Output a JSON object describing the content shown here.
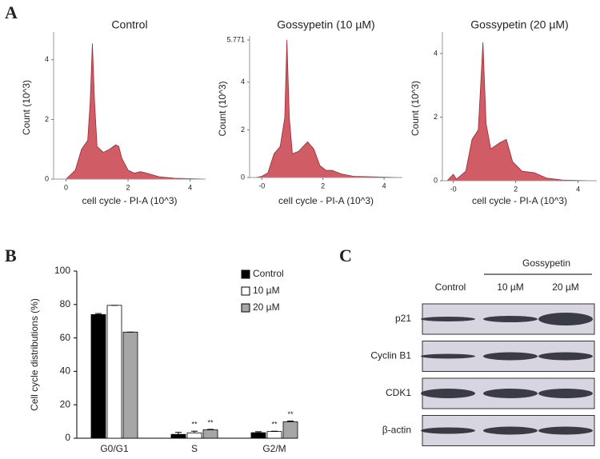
{
  "panel_labels": [
    "A",
    "B",
    "C"
  ],
  "chart_data": [
    {
      "type": "area",
      "title": "Control",
      "x_label": "cell cycle - PI-A (10^3)",
      "y_label": "Count (10^3)",
      "color": "#c8404a",
      "x": [
        0,
        0.3,
        0.5,
        0.7,
        0.78,
        0.85,
        0.92,
        1.0,
        1.2,
        1.4,
        1.6,
        1.7,
        1.8,
        2.0,
        2.2,
        2.4,
        2.6,
        3.0,
        3.5,
        4.5
      ],
      "values": [
        0,
        0.3,
        1.0,
        1.3,
        2.6,
        4.55,
        2.6,
        1.1,
        0.9,
        1.0,
        1.15,
        1.1,
        0.7,
        0.3,
        0.2,
        0.25,
        0.2,
        0.08,
        0.03,
        0
      ],
      "xlim": [
        -0.4,
        4.5
      ],
      "ylim": [
        0,
        4.8
      ],
      "xticks": [
        0,
        2,
        4
      ],
      "yticks": [
        0,
        2,
        4
      ]
    },
    {
      "type": "area",
      "title": "Gossypetin (10 µM)",
      "x_label": "cell cycle - PI-A (10^3)",
      "y_label": "Count (10^3)",
      "color": "#c8404a",
      "x": [
        -0.2,
        0,
        0.2,
        0.4,
        0.6,
        0.75,
        0.82,
        0.9,
        1.0,
        1.2,
        1.5,
        1.7,
        1.9,
        2.1,
        2.3,
        2.6,
        3.0,
        4.6
      ],
      "values": [
        0,
        0.05,
        0.2,
        1.0,
        1.3,
        2.5,
        5.771,
        2.5,
        1.0,
        1.1,
        1.5,
        1.2,
        0.5,
        0.3,
        0.3,
        0.15,
        0.05,
        0
      ],
      "xlim": [
        -0.4,
        4.6
      ],
      "ylim": [
        0,
        5.771
      ],
      "xticks": [
        {
          "value": 0,
          "label": "-0"
        },
        2,
        4
      ],
      "yticks": [
        0,
        2,
        4,
        5.771
      ]
    },
    {
      "type": "area",
      "title": "Gossypetin (20 µM)",
      "x_label": "cell cycle - PI-A (10^3)",
      "y_label": "Count (10^3)",
      "color": "#c8404a",
      "x": [
        -0.2,
        0,
        0.1,
        0.4,
        0.6,
        0.8,
        0.95,
        1.05,
        1.2,
        1.5,
        1.7,
        1.9,
        2.2,
        2.6,
        3.0,
        3.5,
        4.5
      ],
      "values": [
        0,
        0.2,
        0.05,
        0.3,
        1.3,
        1.6,
        4.35,
        1.8,
        1.0,
        1.2,
        1.3,
        0.6,
        0.3,
        0.25,
        0.08,
        0.02,
        0
      ],
      "xlim": [
        -0.35,
        4.6
      ],
      "ylim": [
        0,
        4.55
      ],
      "xticks": [
        {
          "value": 0,
          "label": "-0"
        },
        2,
        4
      ],
      "yticks": [
        0,
        2,
        4
      ]
    },
    {
      "type": "bar",
      "y_label": "Cell cycle distributions (%)",
      "categories": [
        "G0/G1",
        "S",
        "G2/M"
      ],
      "series": [
        {
          "name": "Control",
          "color": "#000000",
          "values": [
            74,
            2.3,
            3.3
          ],
          "errors": [
            0.6,
            1.2,
            0.6
          ],
          "significance": [
            null,
            null,
            null
          ]
        },
        {
          "name": "10 µM",
          "color": "#ffffff",
          "values": [
            79.5,
            3.2,
            4
          ],
          "errors": [
            0,
            1,
            0.2
          ],
          "significance": [
            null,
            "**",
            "**"
          ]
        },
        {
          "name": "20 µM",
          "color": "#a6a6a6",
          "values": [
            63.5,
            5,
            9.8
          ],
          "errors": [
            0,
            0.3,
            0.5
          ],
          "significance": [
            null,
            "**",
            "**"
          ]
        }
      ],
      "ylim": [
        0,
        100
      ],
      "yticks": [
        0,
        20,
        40,
        60,
        80,
        100
      ],
      "legend": "top-right"
    }
  ],
  "blot": {
    "group_label": "Gossypetin",
    "lanes": [
      "Control",
      "10 µM",
      "20 µM"
    ],
    "rows": [
      "p21",
      "Cyclin B1",
      "CDK1",
      "β-actin"
    ]
  }
}
